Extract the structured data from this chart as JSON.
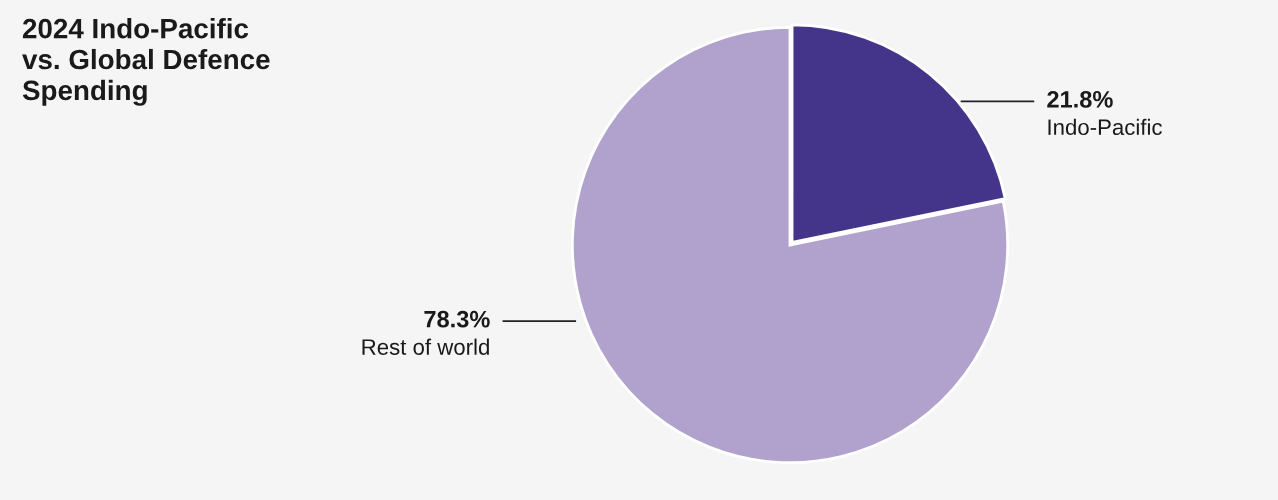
{
  "chart_data": {
    "type": "pie",
    "title": "2024 Indo-Pacific\nvs. Global Defence\nSpending",
    "categories": [
      "Indo-Pacific",
      "Rest of world"
    ],
    "values": [
      21.8,
      78.3
    ],
    "value_labels": [
      "21.8%",
      "78.3%"
    ],
    "colors": [
      "#44348a",
      "#b0a2cd"
    ]
  }
}
